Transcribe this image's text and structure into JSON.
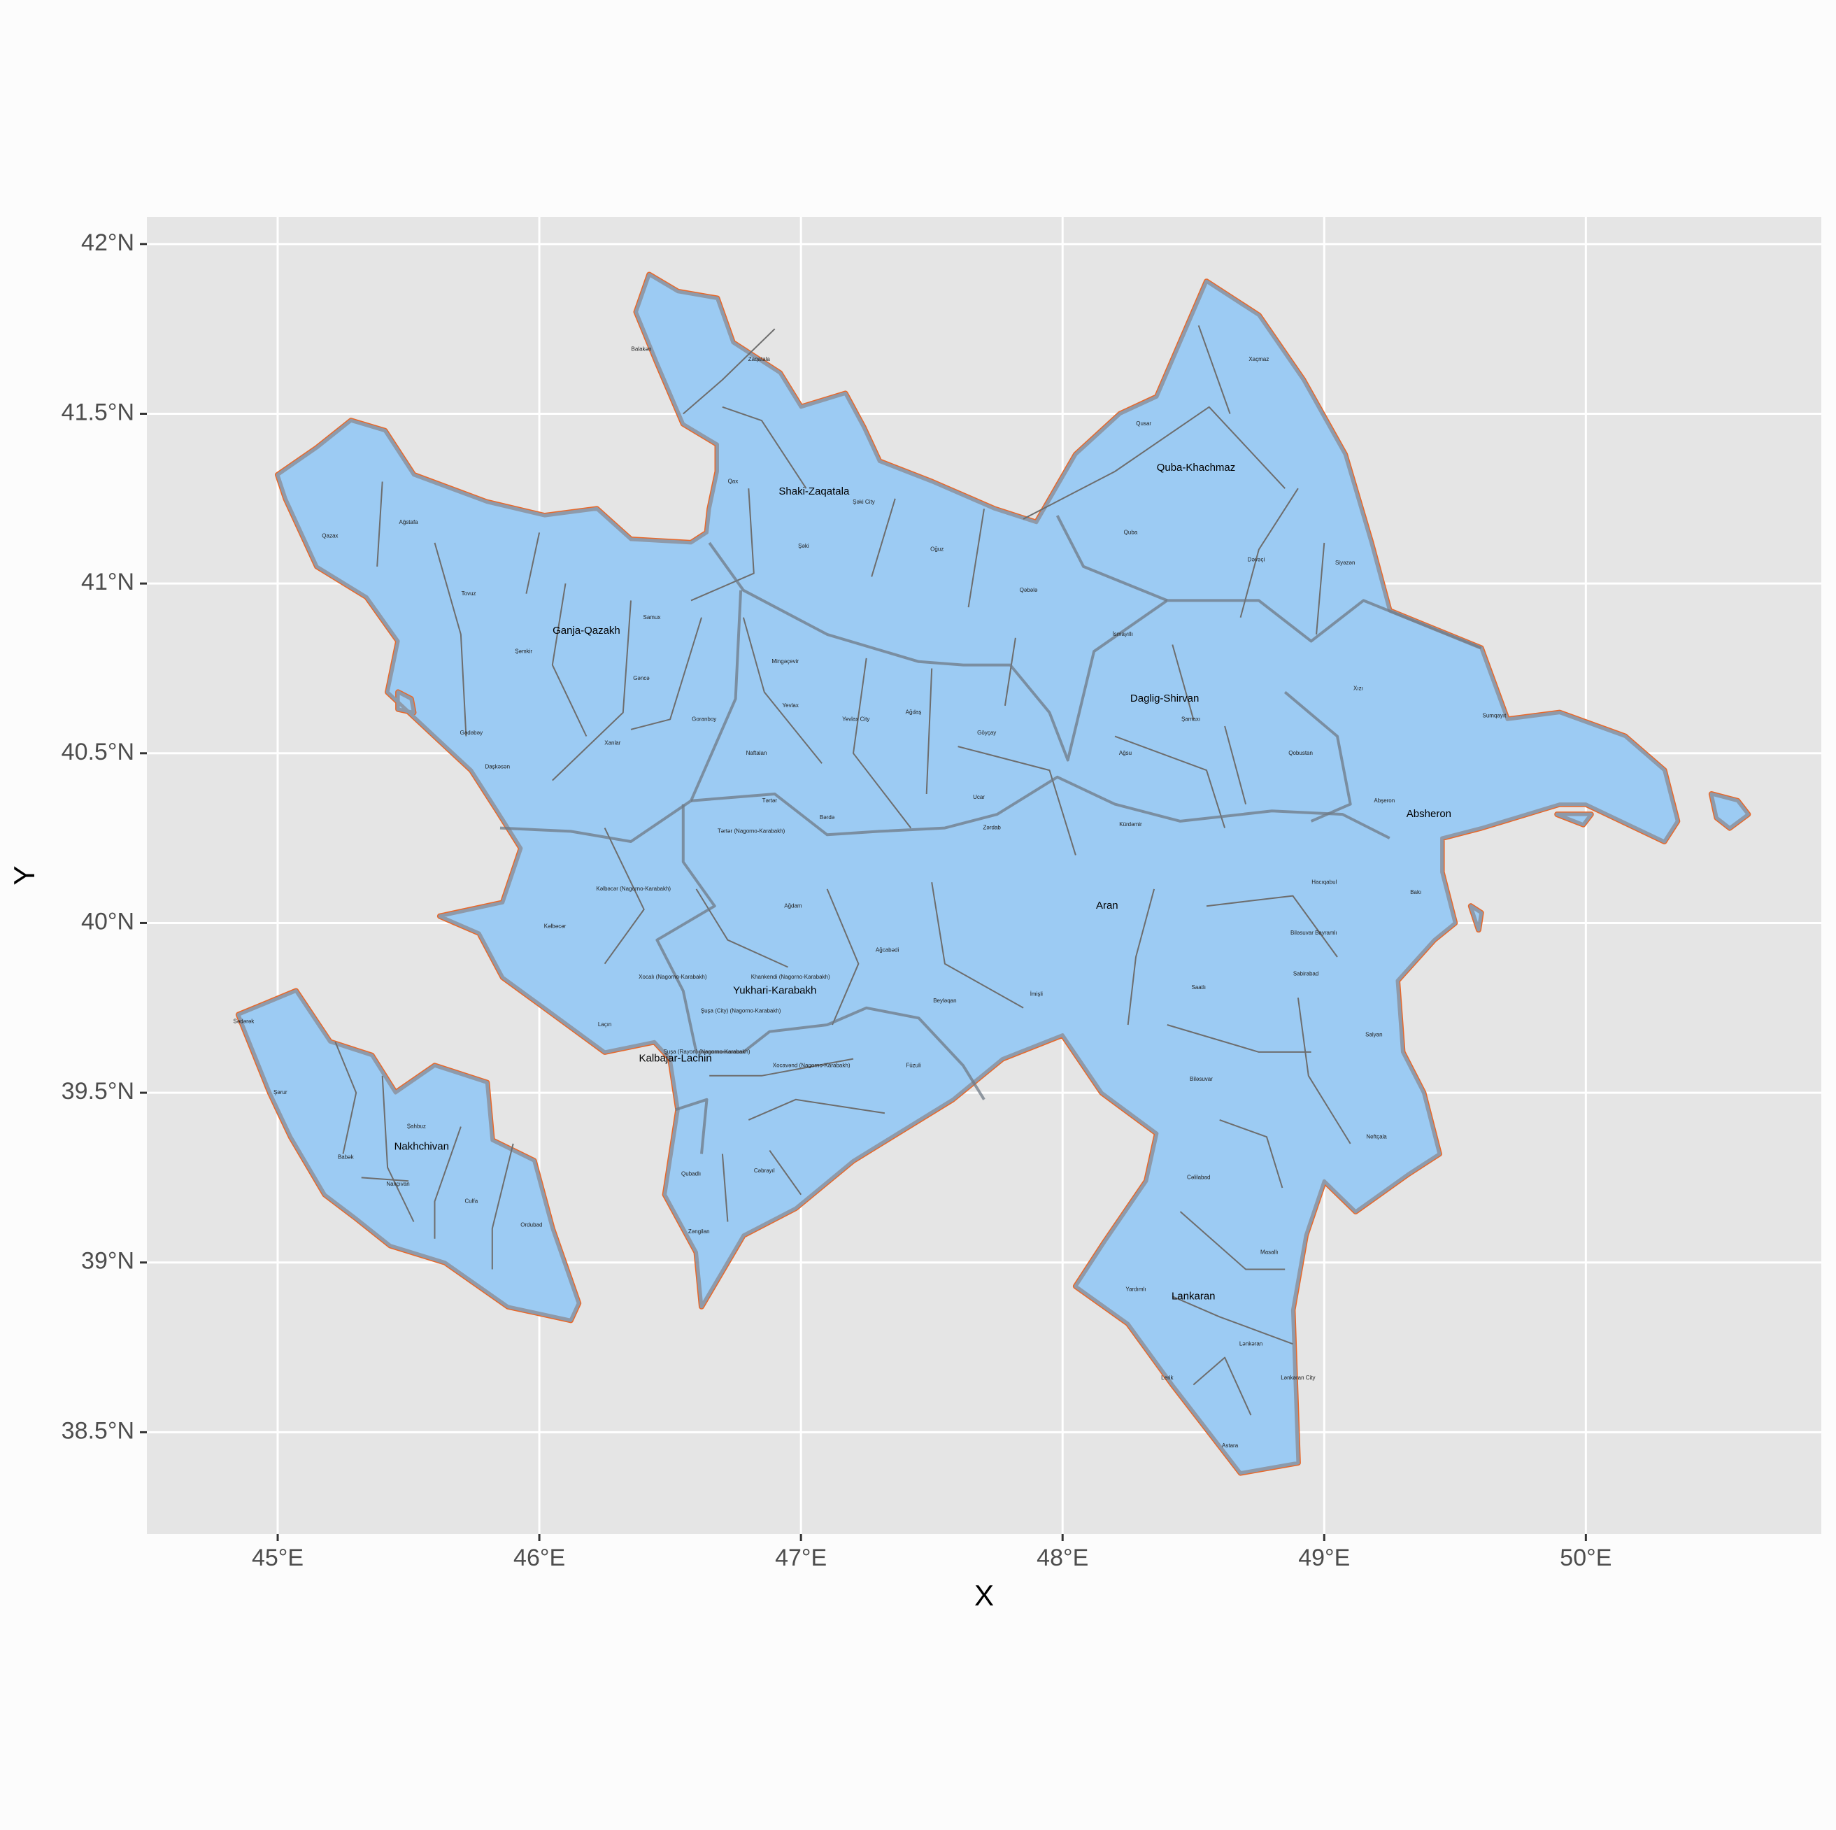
{
  "chart_data": {
    "type": "map",
    "title": "",
    "xlabel": "X",
    "ylabel": "Y",
    "xlim": [
      44.5,
      50.9
    ],
    "ylim": [
      38.2,
      42.08
    ],
    "x_ticks": [
      {
        "value": 45,
        "label": "45°E"
      },
      {
        "value": 46,
        "label": "46°E"
      },
      {
        "value": 47,
        "label": "47°E"
      },
      {
        "value": 48,
        "label": "48°E"
      },
      {
        "value": 49,
        "label": "49°E"
      },
      {
        "value": 50,
        "label": "50°E"
      }
    ],
    "y_ticks": [
      {
        "value": 38.5,
        "label": "38.5°N"
      },
      {
        "value": 39,
        "label": "39°N"
      },
      {
        "value": 39.5,
        "label": "39.5°N"
      },
      {
        "value": 40,
        "label": "40°N"
      },
      {
        "value": 40.5,
        "label": "40.5°N"
      },
      {
        "value": 41,
        "label": "41°N"
      },
      {
        "value": 41.5,
        "label": "41.5°N"
      },
      {
        "value": 42,
        "label": "42°N"
      }
    ],
    "grid": true,
    "colors": {
      "panel": "#e5e5e5",
      "grid": "#ffffff",
      "fill": "#9ccbf3",
      "border_outer": "#e8682a",
      "border_inner": "#8e9aaa",
      "district_line": "#6d6d6d",
      "region_line": "#6f7a86"
    },
    "regions": [
      {
        "name": "Shaki-Zaqatala",
        "lon": 47.05,
        "lat": 41.27
      },
      {
        "name": "Quba-Khachmaz",
        "lon": 48.51,
        "lat": 41.34
      },
      {
        "name": "Ganja-Qazakh",
        "lon": 46.18,
        "lat": 40.86
      },
      {
        "name": "Daglig-Shirvan",
        "lon": 48.39,
        "lat": 40.66
      },
      {
        "name": "Absheron",
        "lon": 49.4,
        "lat": 40.32
      },
      {
        "name": "Aran",
        "lon": 48.17,
        "lat": 40.05
      },
      {
        "name": "Yukhari-Karabakh",
        "lon": 46.9,
        "lat": 39.8
      },
      {
        "name": "Kalbajar-Lachin",
        "lon": 46.52,
        "lat": 39.6
      },
      {
        "name": "Nakhchivan",
        "lon": 45.55,
        "lat": 39.34
      },
      {
        "name": "Lankaran",
        "lon": 48.5,
        "lat": 38.9
      }
    ],
    "districts": [
      {
        "name": "Balakən",
        "lon": 46.39,
        "lat": 41.69
      },
      {
        "name": "Zaqatala",
        "lon": 46.84,
        "lat": 41.66
      },
      {
        "name": "Qax",
        "lon": 46.74,
        "lat": 41.3
      },
      {
        "name": "Şəki City",
        "lon": 47.24,
        "lat": 41.24
      },
      {
        "name": "Şəki",
        "lon": 47.01,
        "lat": 41.11
      },
      {
        "name": "Oğuz",
        "lon": 47.52,
        "lat": 41.1
      },
      {
        "name": "Qusar",
        "lon": 48.31,
        "lat": 41.47
      },
      {
        "name": "Xaçmaz",
        "lon": 48.75,
        "lat": 41.66
      },
      {
        "name": "Quba",
        "lon": 48.26,
        "lat": 41.15
      },
      {
        "name": "Dəvəçi",
        "lon": 48.74,
        "lat": 41.07
      },
      {
        "name": "Siyəzən",
        "lon": 49.08,
        "lat": 41.06
      },
      {
        "name": "Qəbələ",
        "lon": 47.87,
        "lat": 40.98
      },
      {
        "name": "İsmayıllı",
        "lon": 48.23,
        "lat": 40.85
      },
      {
        "name": "Xızı",
        "lon": 49.13,
        "lat": 40.69
      },
      {
        "name": "Sumqayıt",
        "lon": 49.65,
        "lat": 40.61
      },
      {
        "name": "Qazax",
        "lon": 45.2,
        "lat": 41.14
      },
      {
        "name": "Ağstafa",
        "lon": 45.5,
        "lat": 41.18
      },
      {
        "name": "Tovuz",
        "lon": 45.73,
        "lat": 40.97
      },
      {
        "name": "Şəmkir",
        "lon": 45.94,
        "lat": 40.8
      },
      {
        "name": "Samux",
        "lon": 46.43,
        "lat": 40.9
      },
      {
        "name": "Gəncə",
        "lon": 46.39,
        "lat": 40.72
      },
      {
        "name": "Gədəbəy",
        "lon": 45.74,
        "lat": 40.56
      },
      {
        "name": "Daşkəsən",
        "lon": 45.84,
        "lat": 40.46
      },
      {
        "name": "Xanlar",
        "lon": 46.28,
        "lat": 40.53
      },
      {
        "name": "Goranboy",
        "lon": 46.63,
        "lat": 40.6
      },
      {
        "name": "Mingəçevir",
        "lon": 46.94,
        "lat": 40.77
      },
      {
        "name": "Yevlax",
        "lon": 46.96,
        "lat": 40.64
      },
      {
        "name": "Yevlax City",
        "lon": 47.21,
        "lat": 40.6
      },
      {
        "name": "Ağdaş",
        "lon": 47.43,
        "lat": 40.62
      },
      {
        "name": "Göyçay",
        "lon": 47.71,
        "lat": 40.56
      },
      {
        "name": "Şamaxı",
        "lon": 48.49,
        "lat": 40.6
      },
      {
        "name": "Ağsu",
        "lon": 48.24,
        "lat": 40.5
      },
      {
        "name": "Qobustan",
        "lon": 48.91,
        "lat": 40.5
      },
      {
        "name": "Abşeron",
        "lon": 49.23,
        "lat": 40.36
      },
      {
        "name": "Naftalan",
        "lon": 46.83,
        "lat": 40.5
      },
      {
        "name": "Tərtər",
        "lon": 46.88,
        "lat": 40.36
      },
      {
        "name": "Tərtər (Nagorno-Karabakh)",
        "lon": 46.81,
        "lat": 40.27
      },
      {
        "name": "Bərdə",
        "lon": 47.1,
        "lat": 40.31
      },
      {
        "name": "Ucar",
        "lon": 47.68,
        "lat": 40.37
      },
      {
        "name": "Zərdab",
        "lon": 47.73,
        "lat": 40.28
      },
      {
        "name": "Kürdəmir",
        "lon": 48.26,
        "lat": 40.29
      },
      {
        "name": "Kəlbəcər (Nagorno-Karabakh)",
        "lon": 46.36,
        "lat": 40.1
      },
      {
        "name": "Kəlbəcər",
        "lon": 46.06,
        "lat": 39.99
      },
      {
        "name": "Ağdam",
        "lon": 46.97,
        "lat": 40.05
      },
      {
        "name": "Hacıqabul",
        "lon": 49.0,
        "lat": 40.12
      },
      {
        "name": "Bakı",
        "lon": 49.35,
        "lat": 40.09
      },
      {
        "name": "Ağcabədi",
        "lon": 47.33,
        "lat": 39.92
      },
      {
        "name": "Biləsuvar Bayramlı",
        "lon": 48.96,
        "lat": 39.97
      },
      {
        "name": "Sabirabad",
        "lon": 48.93,
        "lat": 39.85
      },
      {
        "name": "Xocalı (Nagorno-Karabakh)",
        "lon": 46.51,
        "lat": 39.84
      },
      {
        "name": "Khankendi (Nagorno-Karabakh)",
        "lon": 46.96,
        "lat": 39.84
      },
      {
        "name": "Saatlı",
        "lon": 48.52,
        "lat": 39.81
      },
      {
        "name": "Beyləqan",
        "lon": 47.55,
        "lat": 39.77
      },
      {
        "name": "İmişli",
        "lon": 47.9,
        "lat": 39.79
      },
      {
        "name": "Şuşa (City) (Nagorno-Karabakh)",
        "lon": 46.77,
        "lat": 39.74
      },
      {
        "name": "Laçın",
        "lon": 46.25,
        "lat": 39.7
      },
      {
        "name": "Salyan",
        "lon": 49.19,
        "lat": 39.67
      },
      {
        "name": "Şuşa (Rayon) (Nagorno-Karabakh)",
        "lon": 46.64,
        "lat": 39.62
      },
      {
        "name": "Xocavənd (Nagorno-Karabakh)",
        "lon": 47.04,
        "lat": 39.58
      },
      {
        "name": "Füzuli",
        "lon": 47.43,
        "lat": 39.58
      },
      {
        "name": "Biləsuvar",
        "lon": 48.53,
        "lat": 39.54
      },
      {
        "name": "Sədərək",
        "lon": 44.87,
        "lat": 39.71
      },
      {
        "name": "Şərur",
        "lon": 45.01,
        "lat": 39.5
      },
      {
        "name": "Şahbuz",
        "lon": 45.53,
        "lat": 39.4
      },
      {
        "name": "Babək",
        "lon": 45.26,
        "lat": 39.31
      },
      {
        "name": "Naxçıvan",
        "lon": 45.46,
        "lat": 39.23
      },
      {
        "name": "Culfa",
        "lon": 45.74,
        "lat": 39.18
      },
      {
        "name": "Ordubad",
        "lon": 45.97,
        "lat": 39.11
      },
      {
        "name": "Neftçala",
        "lon": 49.2,
        "lat": 39.37
      },
      {
        "name": "Cəbrayıl",
        "lon": 46.86,
        "lat": 39.27
      },
      {
        "name": "Qubadlı",
        "lon": 46.58,
        "lat": 39.26
      },
      {
        "name": "Cəlilabad",
        "lon": 48.52,
        "lat": 39.25
      },
      {
        "name": "Zəngilan",
        "lon": 46.61,
        "lat": 39.09
      },
      {
        "name": "Masallı",
        "lon": 48.79,
        "lat": 39.03
      },
      {
        "name": "Yardımlı",
        "lon": 48.28,
        "lat": 38.92
      },
      {
        "name": "Lənkəran",
        "lon": 48.72,
        "lat": 38.76
      },
      {
        "name": "Lənkəran City",
        "lon": 48.9,
        "lat": 38.66
      },
      {
        "name": "Lerik",
        "lon": 48.4,
        "lat": 38.66
      },
      {
        "name": "Astara",
        "lon": 48.64,
        "lat": 38.46
      }
    ]
  }
}
